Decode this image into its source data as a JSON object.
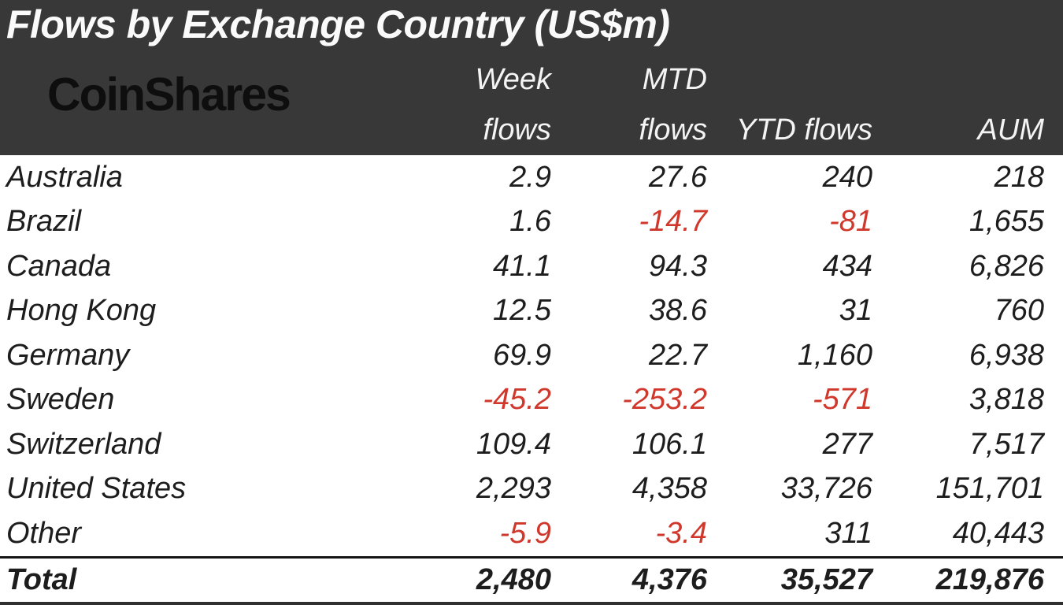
{
  "header": {
    "title": "Flows by Exchange Country (US$m)",
    "brand": "CoinShares",
    "col_headers": {
      "week_line1": "Week",
      "week_line2": "flows",
      "mtd_line1": "MTD",
      "mtd_line2": "flows",
      "ytd": "YTD flows",
      "aum": "AUM"
    }
  },
  "chart_data": {
    "type": "table",
    "title": "Flows by Exchange Country (US$m)",
    "unit": "US$m",
    "columns": [
      "Country",
      "Week flows",
      "MTD flows",
      "YTD flows",
      "AUM"
    ],
    "rows": [
      {
        "country": "Australia",
        "values": [
          "2.9",
          "27.6",
          "240",
          "218"
        ]
      },
      {
        "country": "Brazil",
        "values": [
          "1.6",
          "-14.7",
          "-81",
          "1,655"
        ]
      },
      {
        "country": "Canada",
        "values": [
          "41.1",
          "94.3",
          "434",
          "6,826"
        ]
      },
      {
        "country": "Hong Kong",
        "values": [
          "12.5",
          "38.6",
          "31",
          "760"
        ]
      },
      {
        "country": "Germany",
        "values": [
          "69.9",
          "22.7",
          "1,160",
          "6,938"
        ]
      },
      {
        "country": "Sweden",
        "values": [
          "-45.2",
          "-253.2",
          "-571",
          "3,818"
        ]
      },
      {
        "country": "Switzerland",
        "values": [
          "109.4",
          "106.1",
          "277",
          "7,517"
        ]
      },
      {
        "country": "United States",
        "values": [
          "2,293",
          "4,358",
          "33,726",
          "151,701"
        ]
      },
      {
        "country": "Other",
        "values": [
          "-5.9",
          "-3.4",
          "311",
          "40,443"
        ]
      }
    ],
    "total": {
      "country": "Total",
      "values": [
        "2,480",
        "4,376",
        "35,527",
        "219,876"
      ]
    },
    "negative_values_shown_in_red": true
  },
  "colors": {
    "header_bg": "#383838",
    "header_text": "#f4f4f4",
    "logo_text": "#0e0e0e",
    "body_bg": "#ffffff",
    "body_text": "#1d1d1d",
    "negative": "#d0382c",
    "total_rule": "#161616"
  }
}
